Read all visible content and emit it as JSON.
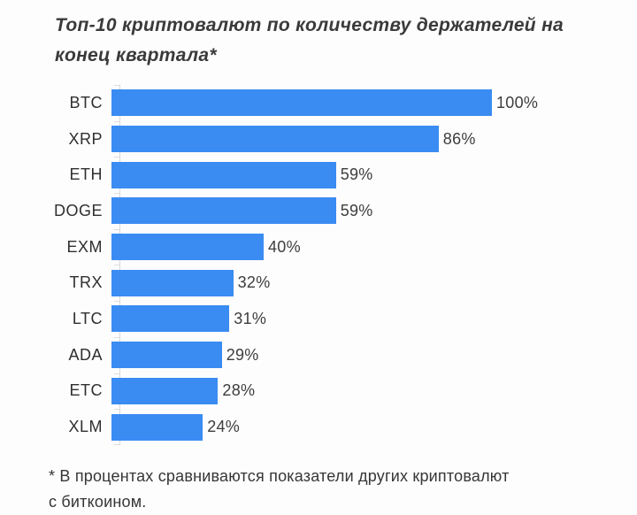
{
  "page": {
    "background": "#fdfdfd"
  },
  "title_lines": [
    "Топ-10 криптовалют по количеству держателей на",
    "конец квартала*"
  ],
  "footnote_lines": [
    "* В процентах сравниваются показатели других криптовалют",
    "с биткоином."
  ],
  "colors": {
    "bar": "#3a8cf2",
    "axis": "#d9d9d9",
    "tick": "#dedede",
    "title_text": "#3a3a3a",
    "label_text": "#2f2f2f",
    "value_text": "#3d3d3d",
    "footnote_text": "#363636",
    "background": "#fdfdfd"
  },
  "chart_data": {
    "type": "bar",
    "orientation": "horizontal",
    "title": "Топ-10 криптовалют по количеству держателей на конец квартала*",
    "footnote": "* В процентах сравниваются показатели других криптовалют с биткоином.",
    "categories": [
      "BTC",
      "XRP",
      "ETH",
      "DOGE",
      "EXM",
      "TRX",
      "LTC",
      "ADA",
      "ETC",
      "XLM"
    ],
    "values": [
      100,
      86,
      59,
      59,
      40,
      32,
      31,
      29,
      28,
      24
    ],
    "value_labels": [
      "100%",
      "86%",
      "59%",
      "59%",
      "40%",
      "32%",
      "31%",
      "29%",
      "28%",
      "24%"
    ],
    "unit": "%",
    "xlim": [
      0,
      100
    ],
    "grid": false,
    "legend": false,
    "value_label_position": "right-of-bar"
  }
}
